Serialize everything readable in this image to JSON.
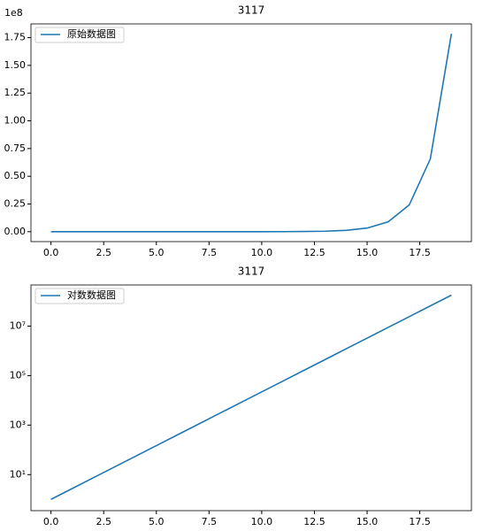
{
  "chart_data": [
    {
      "type": "line",
      "title": "3117",
      "y_offset_label": "1e8",
      "x": [
        0,
        1,
        2,
        3,
        4,
        5,
        6,
        7,
        8,
        9,
        10,
        11,
        12,
        13,
        14,
        15,
        16,
        17,
        18,
        19
      ],
      "series": [
        {
          "name": "原始数据图",
          "color": "#1f77b4",
          "values": [
            1,
            2.718,
            7.389,
            20.09,
            54.6,
            148.4,
            403.4,
            1096.6,
            2981,
            8103.1,
            22026.5,
            59874.1,
            162754.8,
            442413.4,
            1202604.3,
            3269017.4,
            8886110.5,
            24154952.8,
            65659969.1,
            178482301
          ]
        }
      ],
      "xlim": [
        -0.95,
        19.95
      ],
      "xticks": [
        {
          "value": 0,
          "label": "0.0"
        },
        2.5,
        {
          "value": 5,
          "label": "5.0"
        },
        7.5,
        {
          "value": 10,
          "label": "10.0"
        },
        12.5,
        {
          "value": 15,
          "label": "15.0"
        },
        17.5
      ],
      "ylim": [
        -8924114,
        187406416
      ],
      "yticks": [
        {
          "value": 0,
          "label": "0.00"
        },
        {
          "value": 25000000,
          "label": "0.25"
        },
        {
          "value": 50000000,
          "label": "0.50"
        },
        {
          "value": 75000000,
          "label": "0.75"
        },
        {
          "value": 100000000,
          "label": "1.00"
        },
        {
          "value": 125000000,
          "label": "1.25"
        },
        {
          "value": 150000000,
          "label": "1.50"
        },
        {
          "value": 175000000,
          "label": "1.75"
        }
      ],
      "yscale": "linear",
      "legend": "upper-left"
    },
    {
      "type": "line",
      "title": "3117",
      "x": [
        0,
        1,
        2,
        3,
        4,
        5,
        6,
        7,
        8,
        9,
        10,
        11,
        12,
        13,
        14,
        15,
        16,
        17,
        18,
        19
      ],
      "series": [
        {
          "name": "对数数据图",
          "color": "#1f77b4",
          "values": [
            1,
            2.718,
            7.389,
            20.09,
            54.6,
            148.4,
            403.4,
            1096.6,
            2981,
            8103.1,
            22026.5,
            59874.1,
            162754.8,
            442413.4,
            1202604.3,
            3269017.4,
            8886110.5,
            24154952.8,
            65659969.1,
            178482301
          ]
        }
      ],
      "xlim": [
        -0.95,
        19.95
      ],
      "xticks": [
        {
          "value": 0,
          "label": "0.0"
        },
        2.5,
        {
          "value": 5,
          "label": "5.0"
        },
        7.5,
        {
          "value": 10,
          "label": "10.0"
        },
        12.5,
        {
          "value": 15,
          "label": "15.0"
        },
        17.5
      ],
      "ylim": [
        0.35,
        460000000
      ],
      "yticks": [
        {
          "value": 10,
          "label": "10¹"
        },
        {
          "value": 1000,
          "label": "10³"
        },
        {
          "value": 100000,
          "label": "10⁵"
        },
        {
          "value": 10000000,
          "label": "10⁷"
        }
      ],
      "yscale": "log",
      "legend": "upper-left"
    }
  ]
}
